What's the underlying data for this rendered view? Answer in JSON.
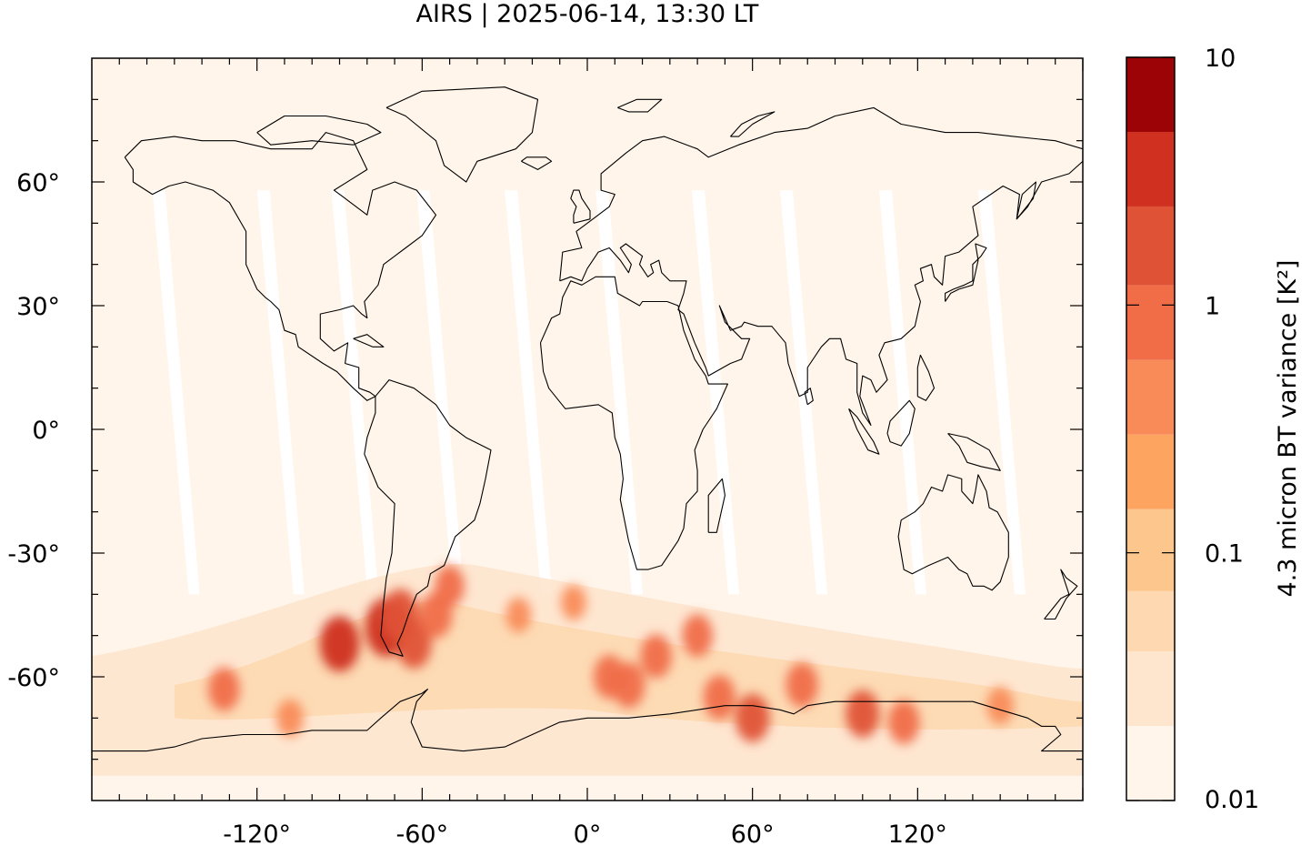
{
  "chart_data": {
    "type": "heatmap",
    "title": "AIRS | 2025-06-14, 13:30 LT",
    "xlabel": "",
    "ylabel": "",
    "xlim": [
      -180,
      180
    ],
    "ylim": [
      -90,
      90
    ],
    "x_ticks": [
      -120,
      -60,
      0,
      60,
      120
    ],
    "x_tick_labels": [
      "-120°",
      "-60°",
      "0°",
      "60°",
      "120°"
    ],
    "y_ticks": [
      60,
      30,
      0,
      -30,
      -60
    ],
    "y_tick_labels": [
      "60°",
      "30°",
      "0°",
      "-30°",
      "-60°"
    ],
    "colorbar": {
      "label": "4.3 micron BT variance [K²]",
      "scale": "log",
      "range": [
        0.01,
        10
      ],
      "tick_values": [
        10,
        1,
        0.1,
        0.01
      ],
      "tick_labels": [
        "10",
        "1",
        "0.1",
        "0.01"
      ],
      "levels": [
        0.01,
        0.02,
        0.04,
        0.07,
        0.15,
        0.3,
        0.6,
        1.2,
        2.5,
        5,
        10
      ],
      "colors": [
        "#fff5eb",
        "#fee6ce",
        "#fdd8b0",
        "#fdc68c",
        "#fda461",
        "#f98b58",
        "#f06d48",
        "#e05236",
        "#cf3020",
        "#9c0306"
      ]
    },
    "hotspots": [
      {
        "lon": -90,
        "lat": -52,
        "value": 3.0
      },
      {
        "lon": -73,
        "lat": -48,
        "value": 4.5
      },
      {
        "lon": -68,
        "lat": -45,
        "value": 2.0
      },
      {
        "lon": -63,
        "lat": -52,
        "value": 1.5
      },
      {
        "lon": -55,
        "lat": -45,
        "value": 1.0
      },
      {
        "lon": -50,
        "lat": -38,
        "value": 0.6
      },
      {
        "lon": -132,
        "lat": -63,
        "value": 0.8
      },
      {
        "lon": -108,
        "lat": -70,
        "value": 0.4
      },
      {
        "lon": 8,
        "lat": -60,
        "value": 0.8
      },
      {
        "lon": 15,
        "lat": -62,
        "value": 1.0
      },
      {
        "lon": 25,
        "lat": -55,
        "value": 0.8
      },
      {
        "lon": 40,
        "lat": -50,
        "value": 0.7
      },
      {
        "lon": 48,
        "lat": -65,
        "value": 0.9
      },
      {
        "lon": 60,
        "lat": -70,
        "value": 1.3
      },
      {
        "lon": 78,
        "lat": -62,
        "value": 0.9
      },
      {
        "lon": 100,
        "lat": -69,
        "value": 1.2
      },
      {
        "lon": 115,
        "lat": -71,
        "value": 0.8
      },
      {
        "lon": 150,
        "lat": -67,
        "value": 0.4
      },
      {
        "lon": -5,
        "lat": -42,
        "value": 0.3
      },
      {
        "lon": -25,
        "lat": -45,
        "value": 0.3
      }
    ]
  }
}
